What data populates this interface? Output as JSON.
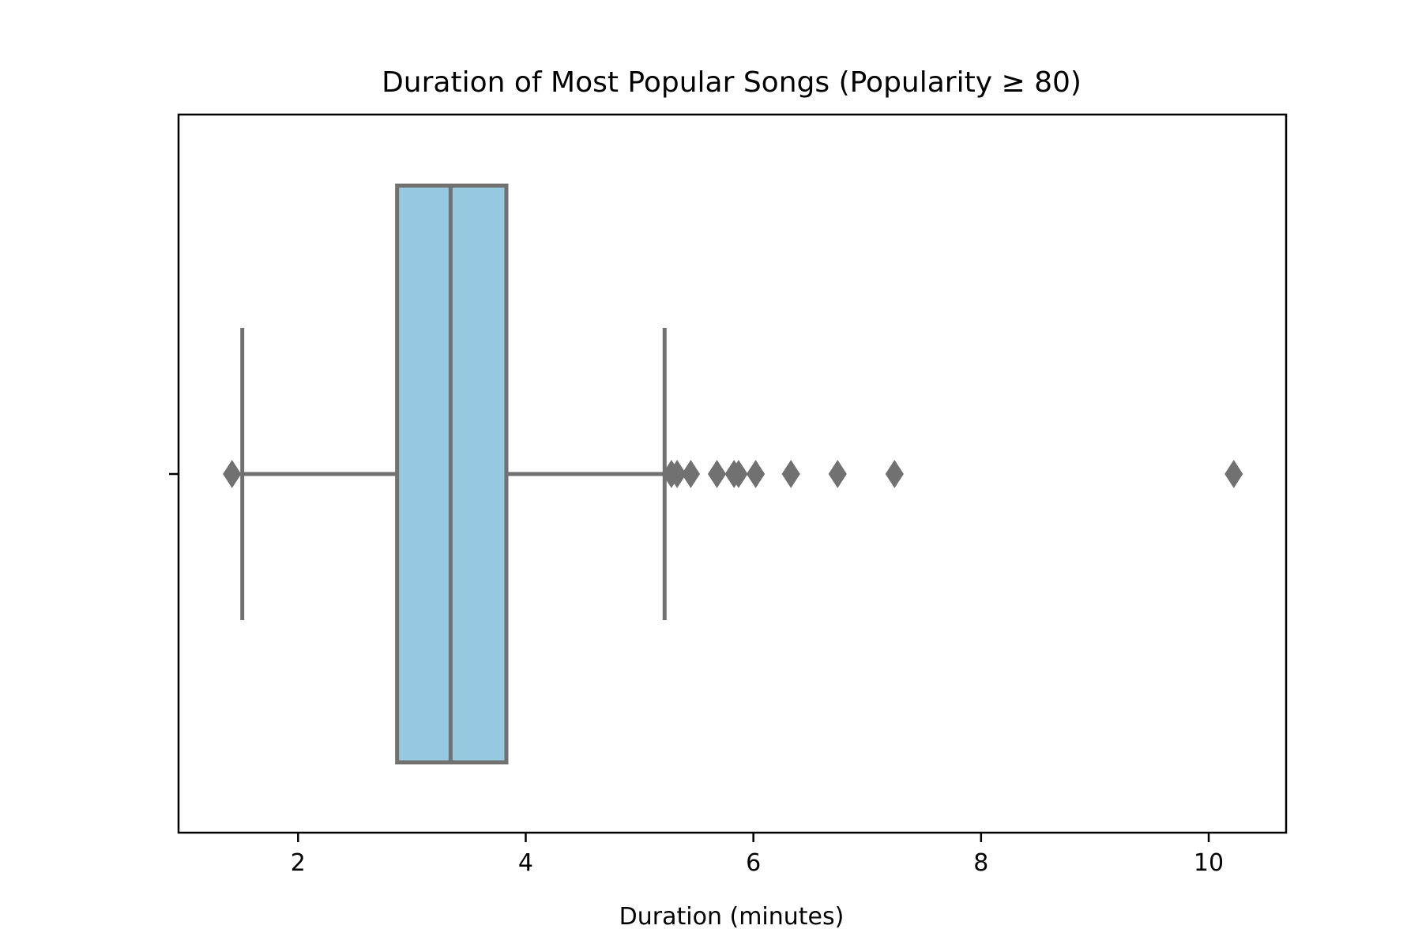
{
  "chart_data": {
    "type": "box",
    "title": "Duration of Most Popular Songs (Popularity ≥ 80)",
    "xlabel": "Duration (minutes)",
    "ylabel": "",
    "xlim": [
      0.95,
      10.68
    ],
    "xticks": [
      2,
      4,
      6,
      8,
      10
    ],
    "tick_labels": [
      "2",
      "4",
      "6",
      "8",
      "10"
    ],
    "orientation": "horizontal",
    "grid": false,
    "legend": "none",
    "colors": {
      "box_fill": "#95c9e0",
      "line": "#717171",
      "axes": "#000000"
    },
    "box": {
      "whisker_low": 1.51,
      "q1": 2.87,
      "median": 3.34,
      "q3": 3.83,
      "whisker_high": 5.22
    },
    "outliers": [
      1.42,
      5.28,
      5.33,
      5.45,
      5.68,
      5.83,
      5.87,
      6.02,
      6.33,
      6.74,
      7.24,
      10.22
    ]
  }
}
